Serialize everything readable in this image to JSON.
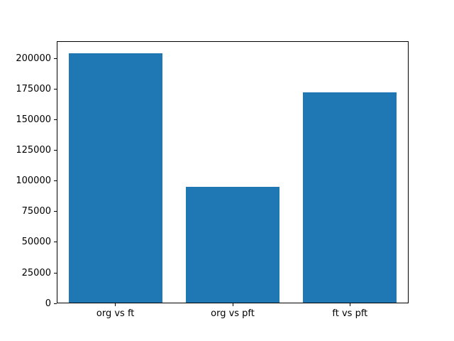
{
  "figure": {
    "background_color": "#ffffff",
    "spine_color": "#000000",
    "text_color": "#000000"
  },
  "chart_data": {
    "type": "bar",
    "title": "",
    "xlabel": "",
    "ylabel": "",
    "categories": [
      "org vs ft",
      "org vs pft",
      "ft vs pft"
    ],
    "values": [
      204000,
      95000,
      172500
    ],
    "bar_color": "#1f77b4",
    "bar_width_fraction": 0.8,
    "ylim": [
      0,
      214200
    ],
    "yticks": [
      0,
      25000,
      50000,
      75000,
      100000,
      125000,
      150000,
      175000,
      200000
    ],
    "grid": false,
    "legend": null
  }
}
